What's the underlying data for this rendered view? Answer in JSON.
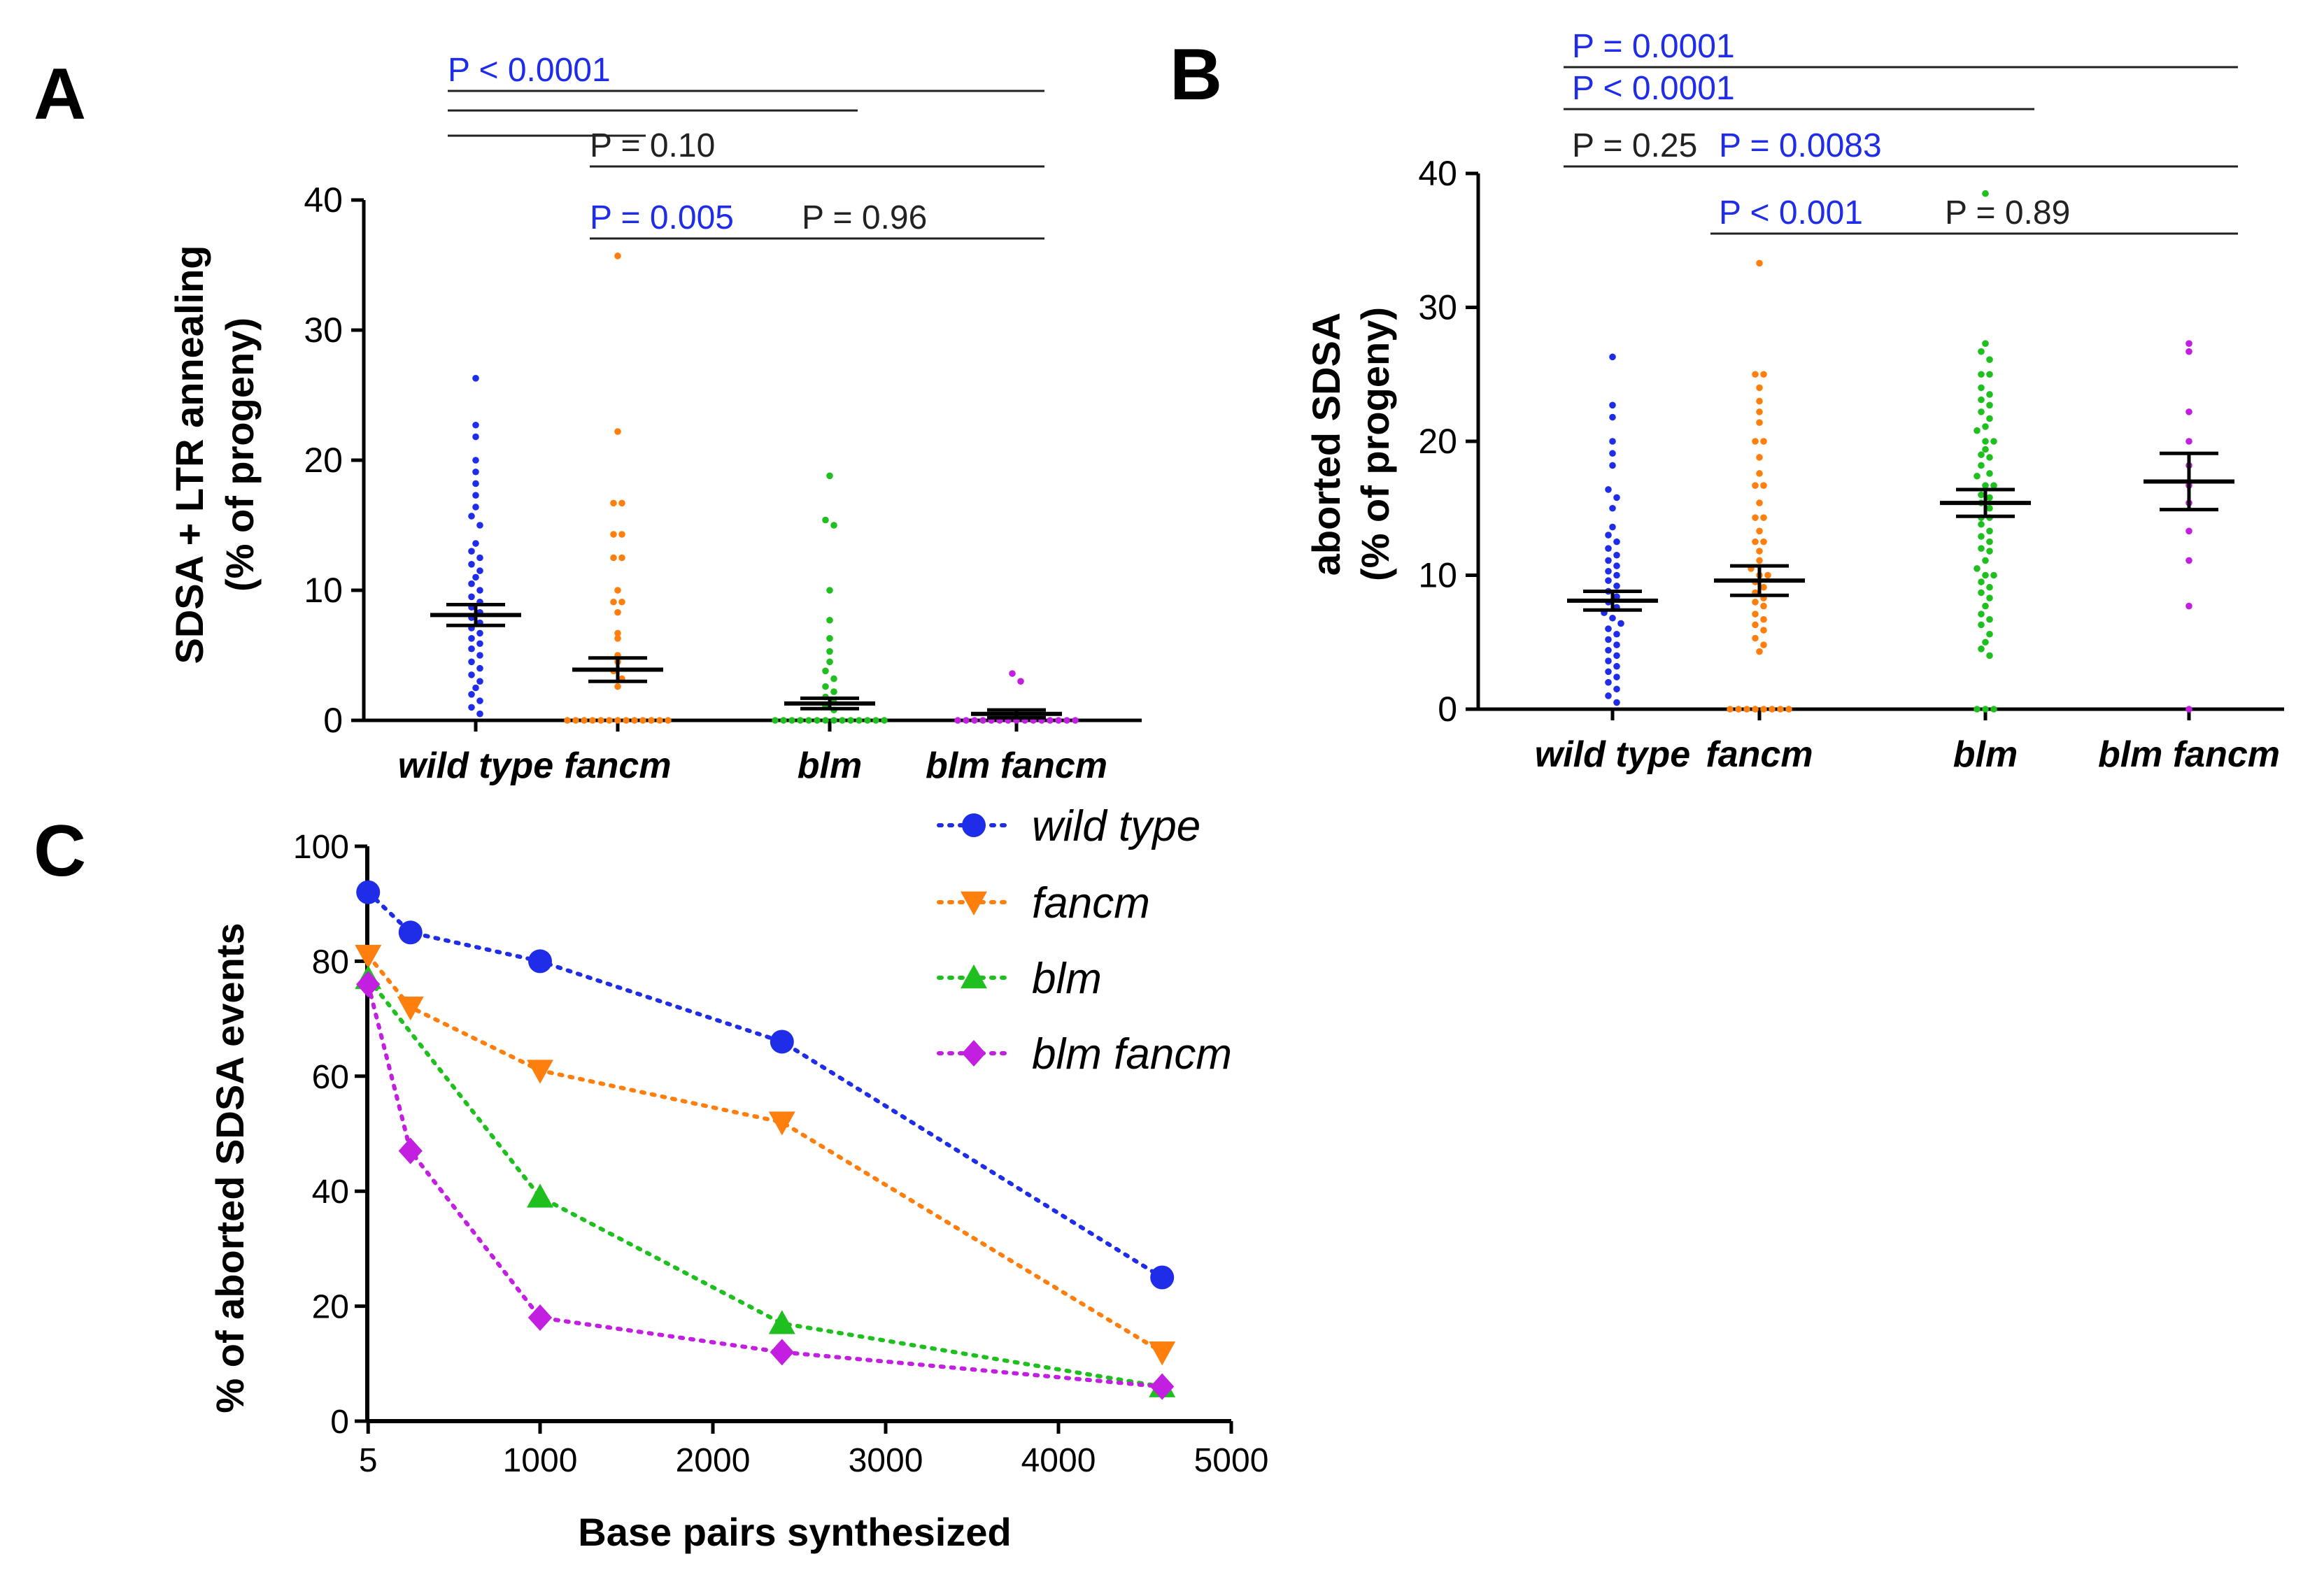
{
  "panels": {
    "a": "A",
    "b": "B",
    "c": "C"
  },
  "colors": {
    "wild_type": "#1f2de8",
    "fancm": "#ff7f0e",
    "blm": "#1fbf1f",
    "blm_fancm": "#c21fe0",
    "significant": "#1f2de8",
    "not_significant": "#222222",
    "axis": "#000000"
  },
  "chart_data": [
    {
      "id": "A",
      "type": "scatter",
      "subtype": "dot-plot-mean-sem",
      "ylabel": "SDSA + LTR annealing",
      "ylabel2": "(% of progeny)",
      "ylim": [
        0,
        40
      ],
      "yticks": [
        0,
        10,
        20,
        30,
        40
      ],
      "categories": [
        "wild type",
        "fancm",
        "blm",
        "blm fancm"
      ],
      "means": [
        8.1,
        3.9,
        1.3,
        0.5
      ],
      "sem": [
        0.8,
        0.9,
        0.4,
        0.3
      ],
      "points": [
        [
          26.3,
          22.7,
          21.8,
          20.0,
          19.1,
          18.2,
          17.3,
          16.4,
          15.7,
          15.0,
          13.6,
          13.0,
          12.5,
          12.0,
          11.5,
          11.0,
          10.5,
          10.0,
          9.5,
          9.1,
          8.7,
          8.3,
          7.9,
          7.5,
          7.1,
          6.7,
          6.3,
          5.9,
          5.5,
          5.0,
          4.5,
          4.0,
          3.5,
          3.0,
          2.5,
          2.0,
          1.5,
          1.0,
          0.5
        ],
        [
          35.7,
          22.2,
          16.7,
          16.7,
          14.3,
          14.3,
          12.5,
          12.5,
          10.0,
          9.1,
          9.1,
          8.3,
          6.7,
          6.3,
          5.0,
          4.5,
          3.8,
          3.2,
          2.6,
          0,
          0,
          0,
          0,
          0,
          0,
          0,
          0,
          0,
          0,
          0,
          0,
          0
        ],
        [
          18.8,
          15.4,
          15.0,
          10.0,
          7.7,
          6.3,
          5.3,
          4.5,
          3.8,
          3.2,
          2.6,
          2.2,
          1.8,
          1.4,
          1.1,
          0.8,
          0,
          0,
          0,
          0,
          0,
          0,
          0,
          0,
          0,
          0,
          0,
          0,
          0,
          0
        ],
        [
          3.6,
          3.0,
          0,
          0,
          0,
          0,
          0,
          0,
          0,
          0,
          0,
          0,
          0,
          0,
          0,
          0,
          0
        ]
      ],
      "comparisons": [
        {
          "label": "P < 0.0001",
          "significant": true,
          "from": 0,
          "to": 3,
          "level": 1
        },
        {
          "label": "",
          "significant": true,
          "from": 0,
          "to": 2,
          "level": 2
        },
        {
          "label": "",
          "significant": true,
          "from": 0,
          "to": 1,
          "level": 3
        },
        {
          "label": "P = 0.10",
          "significant": false,
          "from": 1,
          "to": 3,
          "level": 4
        },
        {
          "label": "P = 0.005",
          "significant": true,
          "from": 1,
          "to": 2,
          "level": 5
        },
        {
          "label": "P = 0.96",
          "significant": false,
          "from": 2,
          "to": 3,
          "level": 5
        }
      ]
    },
    {
      "id": "B",
      "type": "scatter",
      "subtype": "dot-plot-mean-sem",
      "ylabel": "aborted SDSA",
      "ylabel2": "(% of progeny)",
      "ylim": [
        0,
        40
      ],
      "yticks": [
        0,
        10,
        20,
        30,
        40
      ],
      "categories": [
        "wild type",
        "fancm",
        "blm",
        "blm fancm"
      ],
      "means": [
        8.1,
        9.6,
        15.4,
        17.0
      ],
      "sem": [
        0.7,
        1.1,
        1.0,
        2.1
      ],
      "points": [
        [
          26.3,
          22.7,
          21.8,
          20.0,
          19.1,
          18.2,
          16.4,
          15.8,
          15.0,
          13.6,
          13.0,
          12.5,
          12.0,
          11.5,
          11.1,
          10.7,
          10.3,
          10.0,
          9.6,
          9.2,
          8.8,
          8.4,
          8.0,
          7.6,
          7.2,
          6.8,
          6.4,
          6.0,
          5.6,
          5.2,
          4.8,
          4.4,
          4.0,
          3.6,
          3.2,
          2.8,
          2.4,
          2.0,
          1.5,
          1.0,
          0.5
        ],
        [
          33.3,
          25.0,
          25.0,
          24.0,
          23.0,
          22.2,
          21.4,
          20.0,
          20.0,
          18.8,
          17.6,
          16.7,
          16.7,
          15.4,
          14.3,
          14.3,
          13.3,
          12.5,
          12.5,
          11.8,
          11.1,
          10.5,
          10.0,
          10.0,
          9.5,
          9.1,
          8.7,
          8.3,
          8.0,
          7.7,
          7.1,
          6.7,
          6.3,
          5.9,
          5.3,
          4.8,
          4.3,
          0,
          0,
          0,
          0,
          0,
          0,
          0,
          0
        ],
        [
          38.5,
          27.3,
          26.7,
          26.1,
          25.0,
          25.0,
          24.0,
          23.5,
          23.1,
          22.7,
          22.2,
          21.7,
          21.1,
          20.8,
          20.0,
          20.0,
          19.4,
          19.0,
          18.8,
          18.2,
          17.6,
          17.4,
          16.7,
          16.7,
          16.0,
          15.8,
          15.4,
          15.0,
          14.3,
          14.3,
          13.8,
          13.3,
          12.9,
          12.5,
          12.0,
          11.8,
          11.1,
          10.5,
          10.0,
          10.0,
          9.5,
          9.1,
          8.7,
          8.3,
          7.7,
          7.1,
          6.7,
          6.3,
          5.6,
          5.0,
          4.5,
          4.0,
          0,
          0,
          0
        ],
        [
          27.3,
          26.7,
          22.2,
          20.0,
          18.2,
          16.7,
          15.4,
          13.3,
          11.1,
          7.7,
          0
        ]
      ],
      "comparisons": [
        {
          "label": "P = 0.0001",
          "significant": true,
          "from": 0,
          "to": 3,
          "level": 1
        },
        {
          "label": "P < 0.0001",
          "significant": true,
          "from": 0,
          "to": 2,
          "level": 2
        },
        {
          "label": "P = 0.25",
          "significant": false,
          "from": 0,
          "to": 1,
          "level": 3
        },
        {
          "label": "P = 0.0083",
          "significant": true,
          "from": 1,
          "to": 3,
          "level": 3
        },
        {
          "label": "P < 0.001",
          "significant": true,
          "from": 1,
          "to": 2,
          "level": 4
        },
        {
          "label": "P = 0.89",
          "significant": false,
          "from": 2,
          "to": 3,
          "level": 4
        }
      ]
    },
    {
      "id": "C",
      "type": "line",
      "xlabel": "Base pairs synthesized",
      "ylabel": "% of aborted SDSA events",
      "xlim": [
        0,
        5000
      ],
      "ylim": [
        0,
        100
      ],
      "xticks": [
        5,
        1000,
        2000,
        3000,
        4000,
        5000
      ],
      "yticks": [
        0,
        20,
        40,
        60,
        80,
        100
      ],
      "legend_position": "top-right",
      "series": [
        {
          "name": "wild type",
          "marker": "circle",
          "x": [
            5,
            250,
            1000,
            2400,
            4600
          ],
          "values": [
            92,
            85,
            80,
            66,
            25
          ]
        },
        {
          "name": "fancm",
          "marker": "triangle-down",
          "x": [
            5,
            250,
            1000,
            2400,
            4600
          ],
          "values": [
            81,
            72,
            61,
            52,
            12
          ]
        },
        {
          "name": "blm",
          "marker": "triangle-up",
          "x": [
            5,
            1000,
            2400,
            4600
          ],
          "values": [
            77,
            39,
            17,
            6
          ]
        },
        {
          "name": "blm fancm",
          "marker": "diamond",
          "x": [
            5,
            250,
            1000,
            2400,
            4600
          ],
          "values": [
            76,
            47,
            18,
            12,
            6
          ]
        }
      ]
    }
  ]
}
